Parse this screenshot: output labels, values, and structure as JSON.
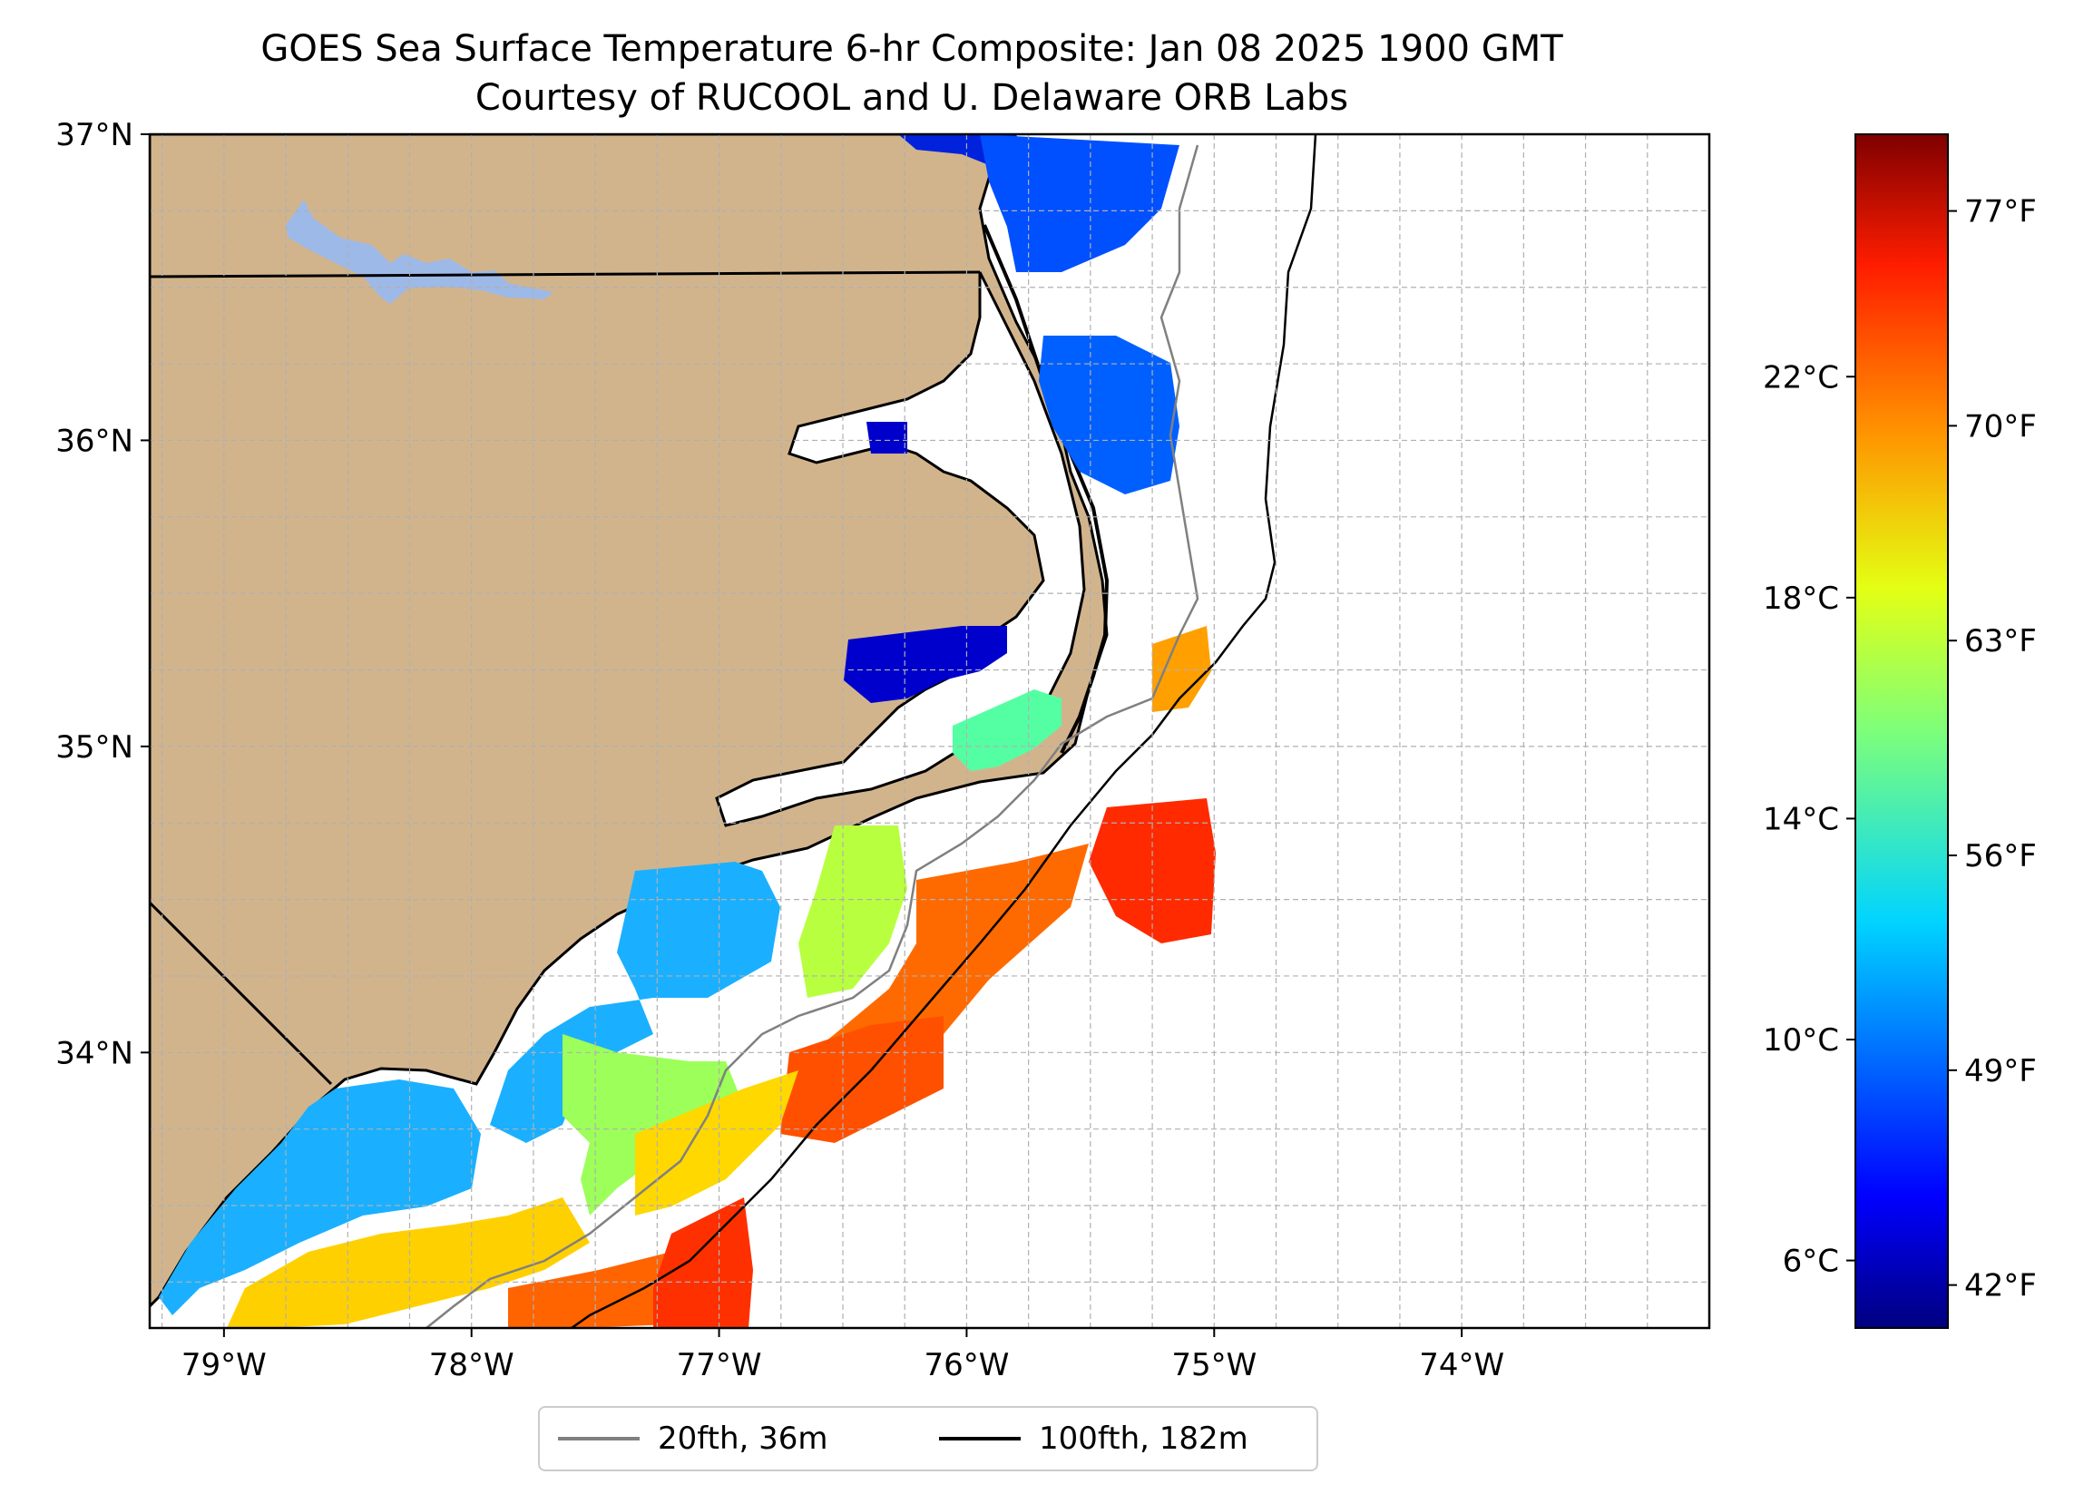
{
  "header": {
    "title": "GOES Sea Surface Temperature 6-hr Composite: Jan 08 2025 1900 GMT",
    "subtitle": "Courtesy of RUCOOL and U. Delaware ORB Labs"
  },
  "map": {
    "lat_range": [
      33.1,
      37.0
    ],
    "lon_range": [
      -79.3,
      -73.0
    ],
    "lat_ticks": [
      {
        "value": 37,
        "label": "37°N"
      },
      {
        "value": 36,
        "label": "36°N"
      },
      {
        "value": 35,
        "label": "35°N"
      },
      {
        "value": 34,
        "label": "34°N"
      }
    ],
    "lon_ticks": [
      {
        "value": -79,
        "label": "79°W"
      },
      {
        "value": -78,
        "label": "78°W"
      },
      {
        "value": -77,
        "label": "77°W"
      },
      {
        "value": -76,
        "label": "76°W"
      },
      {
        "value": -75,
        "label": "75°W"
      },
      {
        "value": -74,
        "label": "74°W"
      }
    ],
    "gridlines": true,
    "land_color": "#d2b48c",
    "water_body_color": "#9db9e8",
    "ocean_color": "#ffffff"
  },
  "colorbar": {
    "colormap": "jet",
    "celsius_ticks": [
      {
        "value": 6,
        "label": "6°C"
      },
      {
        "value": 10,
        "label": "10°C"
      },
      {
        "value": 14,
        "label": "14°C"
      },
      {
        "value": 18,
        "label": "18°C"
      },
      {
        "value": 22,
        "label": "22°C"
      }
    ],
    "fahrenheit_ticks": [
      {
        "value": 42,
        "label": "42°F"
      },
      {
        "value": 49,
        "label": "49°F"
      },
      {
        "value": 56,
        "label": "56°F"
      },
      {
        "value": 63,
        "label": "63°F"
      },
      {
        "value": 70,
        "label": "70°F"
      },
      {
        "value": 77,
        "label": "77°F"
      }
    ]
  },
  "legend": {
    "items": [
      {
        "label": "20fth, 36m",
        "color": "#808080"
      },
      {
        "label": "100fth, 182m",
        "color": "#000000"
      }
    ]
  }
}
